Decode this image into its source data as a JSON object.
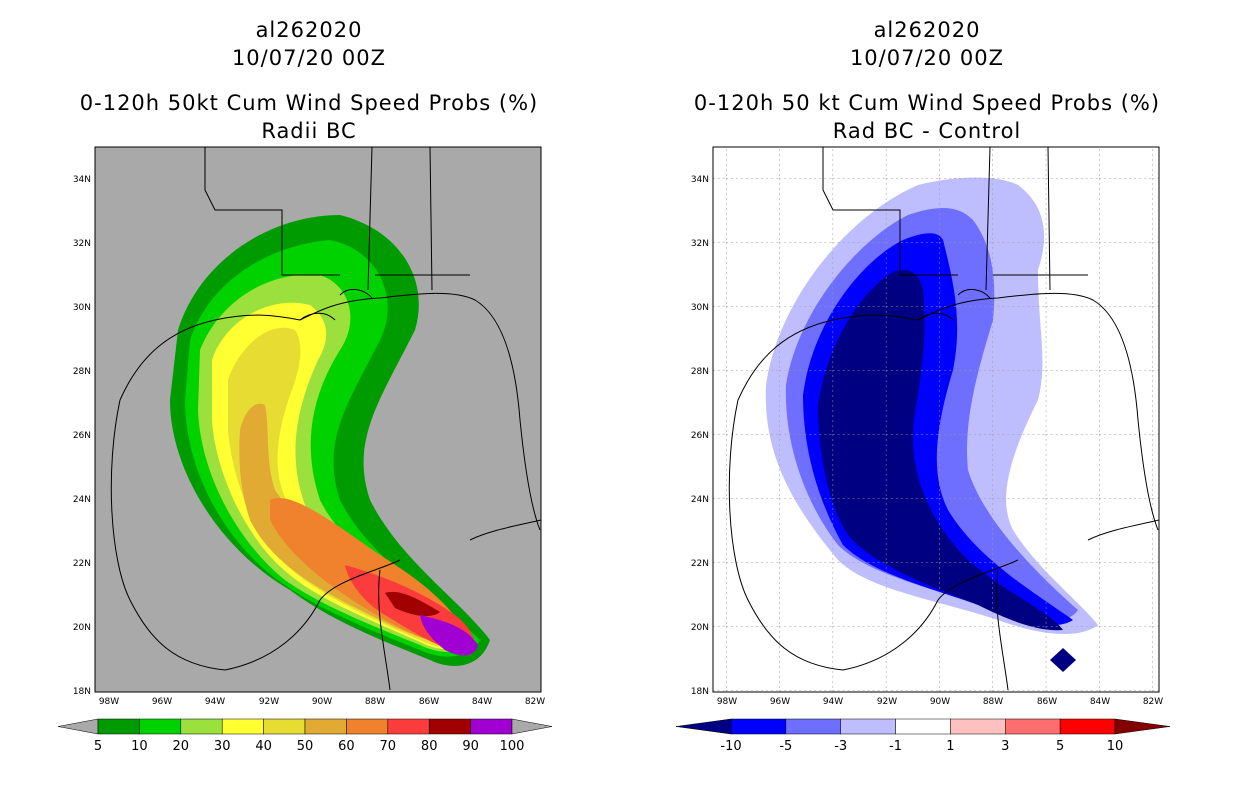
{
  "panels": [
    {
      "storm": "al262020",
      "date": "10/07/20 00Z",
      "title": "0-120h 50kt Cum Wind Speed Probs (%)",
      "subtitle": "Radii BC",
      "background": "#a9a9a9",
      "colorbar": {
        "labels": [
          "5",
          "10",
          "20",
          "30",
          "40",
          "50",
          "60",
          "70",
          "80",
          "90",
          "100"
        ],
        "colors": [
          "#009b00",
          "#00d200",
          "#9be03c",
          "#ffff32",
          "#e6dc32",
          "#e1aa32",
          "#f0822d",
          "#fa3c3c",
          "#a00000",
          "#a000d2"
        ],
        "low_cap": "#a9a9a9",
        "high_cap": "#a9a9a9"
      }
    },
    {
      "storm": "al262020",
      "date": "10/07/20 00Z",
      "title": "0-120h 50 kt Cum Wind Speed Probs (%)",
      "subtitle": "Rad BC - Control",
      "background": "#ffffff",
      "colorbar": {
        "labels": [
          "-10",
          "-5",
          "-3",
          "-1",
          "1",
          "3",
          "5",
          "10"
        ],
        "colors": [
          "#0000ff",
          "#6e6eff",
          "#bebeff",
          "#ffffff",
          "#ffc0c0",
          "#ff6e6e",
          "#ff0000"
        ],
        "low_cap": "#000082",
        "high_cap": "#820000"
      }
    }
  ],
  "axes": {
    "lon_labels": [
      "98W",
      "96W",
      "94W",
      "92W",
      "90W",
      "88W",
      "86W",
      "84W",
      "82W"
    ],
    "lat_labels": [
      "34N",
      "32N",
      "30N",
      "28N",
      "26N",
      "24N",
      "22N",
      "20N",
      "18N"
    ]
  }
}
